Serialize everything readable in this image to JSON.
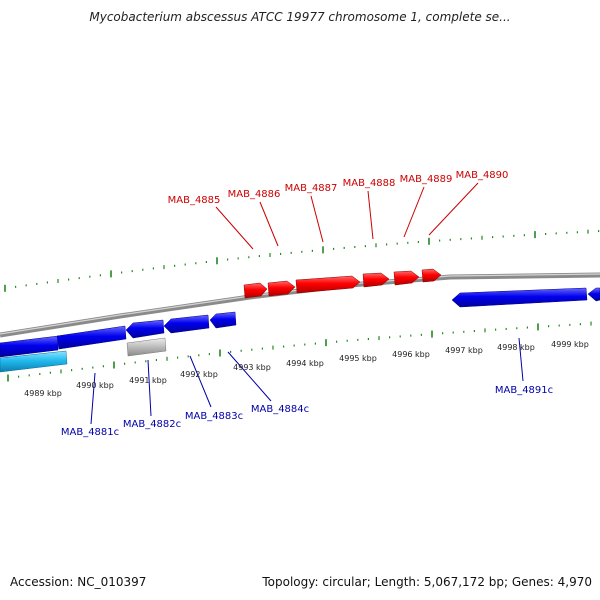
{
  "title": "Mycobacterium abscessus ATCC 19977 chromosome 1, complete se...",
  "footer": {
    "accession": "Accession: NC_010397",
    "stats": "Topology: circular; Length: 5,067,172 bp; Genes: 4,970"
  },
  "colors": {
    "forward_gene": "#ff0000",
    "reverse_gene": "#0000ee",
    "reverse_gene_alt": "#22bbee",
    "other_feature": "#bbbbbb",
    "backbone": "#888888",
    "ticks": "#228822",
    "forward_label": "#cc0000",
    "reverse_label": "#0000aa"
  },
  "scale_labels": [
    "4989 kbp",
    "4990 kbp",
    "4991 kbp",
    "4992 kbp",
    "4993 kbp",
    "4994 kbp",
    "4995 kbp",
    "4996 kbp",
    "4997 kbp",
    "4998 kbp",
    "4999 kbp"
  ],
  "forward_genes": [
    "MAB_4885",
    "MAB_4886",
    "MAB_4887",
    "MAB_4888",
    "MAB_4889",
    "MAB_4890"
  ],
  "reverse_genes": [
    "MAB_4881c",
    "MAB_4882c",
    "MAB_4883c",
    "MAB_4884c",
    "MAB_4891c"
  ]
}
